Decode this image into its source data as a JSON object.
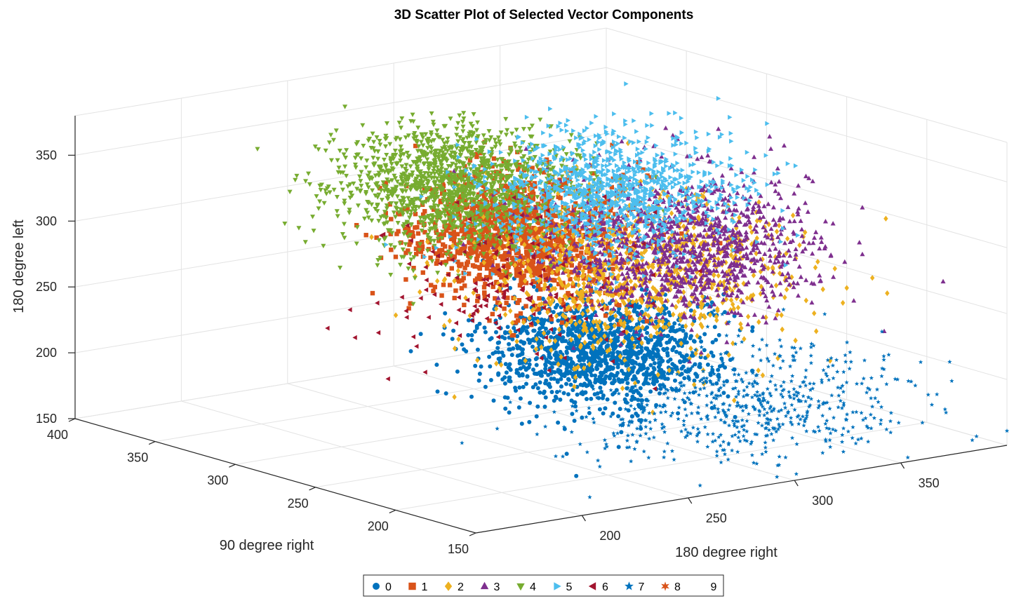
{
  "chart_data": {
    "type": "scatter3d",
    "title": "3D Scatter Plot of Selected Vector Components",
    "xlabel": "180 degree right",
    "ylabel": "90 degree right",
    "zlabel": "180 degree left",
    "xlim": [
      150,
      400
    ],
    "ylim": [
      150,
      400
    ],
    "zlim": [
      150,
      380
    ],
    "x_ticks": [
      "200",
      "250",
      "300",
      "350"
    ],
    "y_ticks": [
      "150",
      "200",
      "250",
      "300",
      "350",
      "400"
    ],
    "z_ticks": [
      "150",
      "200",
      "250",
      "300",
      "350"
    ],
    "grid": true,
    "legend_position": "bottom",
    "series": [
      {
        "name": "0",
        "marker": "circle",
        "color": "#0072BD",
        "count": 1400,
        "center": [
          275,
          240,
          225
        ],
        "spread": [
          22,
          22,
          18
        ]
      },
      {
        "name": "1",
        "marker": "square",
        "color": "#D95319",
        "count": 1300,
        "center": [
          265,
          275,
          300
        ],
        "spread": [
          20,
          20,
          22
        ]
      },
      {
        "name": "2",
        "marker": "diamond",
        "color": "#EDB120",
        "count": 1000,
        "center": [
          300,
          250,
          275
        ],
        "spread": [
          30,
          30,
          28
        ]
      },
      {
        "name": "3",
        "marker": "triangle-up",
        "color": "#7E2F8E",
        "count": 1100,
        "center": [
          320,
          245,
          290
        ],
        "spread": [
          25,
          25,
          25
        ]
      },
      {
        "name": "4",
        "marker": "triangle-down",
        "color": "#77AC30",
        "count": 1400,
        "center": [
          245,
          290,
          340
        ],
        "spread": [
          22,
          22,
          22
        ]
      },
      {
        "name": "5",
        "marker": "triangle-right",
        "color": "#4DBEEE",
        "count": 1100,
        "center": [
          300,
          265,
          330
        ],
        "spread": [
          25,
          22,
          22
        ]
      },
      {
        "name": "6",
        "marker": "triangle-left",
        "color": "#A2142F",
        "count": 150,
        "center": [
          245,
          260,
          270
        ],
        "spread": [
          25,
          25,
          28
        ]
      },
      {
        "name": "7",
        "marker": "star",
        "color": "#0072BD",
        "count": 650,
        "center": [
          330,
          220,
          175
        ],
        "spread": [
          35,
          28,
          22
        ]
      },
      {
        "name": "8",
        "marker": "hexagram",
        "color": "#D95319",
        "count": 0,
        "center": [
          260,
          260,
          250
        ],
        "spread": [
          10,
          10,
          10
        ]
      },
      {
        "name": "9",
        "marker": "none",
        "color": "#EDB120",
        "count": 0,
        "center": [
          260,
          260,
          250
        ],
        "spread": [
          10,
          10,
          10
        ]
      }
    ]
  }
}
